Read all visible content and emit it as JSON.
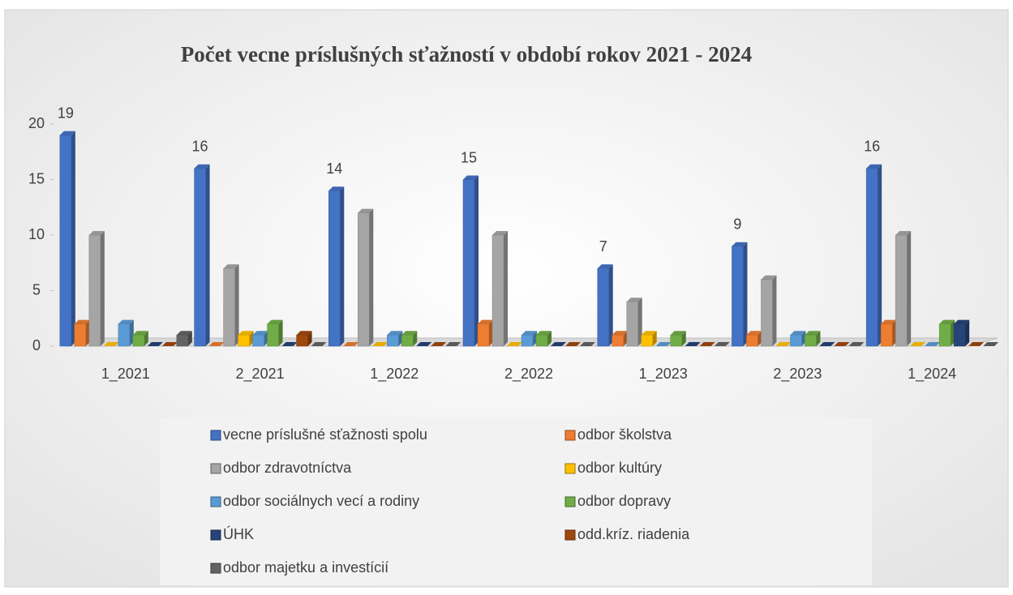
{
  "chart_data": {
    "type": "bar3d",
    "title": "Počet vecne príslušných sťažností v období rokov 2021 - 2024",
    "categories": [
      "1_2021",
      "2_2021",
      "1_2022",
      "2_2022",
      "1_2023",
      "2_2023",
      "1_2024"
    ],
    "series": [
      {
        "name": "vecne príslušné sťažnosti spolu",
        "color": "#4472c4",
        "values": [
          19,
          16,
          14,
          15,
          7,
          9,
          16
        ],
        "data_labels": true
      },
      {
        "name": "odbor školstva",
        "color": "#ed7d31",
        "values": [
          2,
          0,
          0,
          2,
          1,
          1,
          2
        ]
      },
      {
        "name": "odbor zdravotníctva",
        "color": "#a5a5a5",
        "values": [
          10,
          7,
          12,
          10,
          4,
          6,
          10
        ]
      },
      {
        "name": "odbor kultúry",
        "color": "#ffc000",
        "values": [
          0,
          1,
          0,
          0,
          1,
          0,
          0
        ]
      },
      {
        "name": "odbor sociálnych vecí a rodiny",
        "color": "#5b9bd5",
        "values": [
          2,
          1,
          1,
          1,
          0,
          1,
          0
        ]
      },
      {
        "name": "odbor dopravy",
        "color": "#70ad47",
        "values": [
          1,
          2,
          1,
          1,
          1,
          1,
          2
        ]
      },
      {
        "name": "ÚHK",
        "color": "#264478",
        "values": [
          0,
          0,
          0,
          0,
          0,
          0,
          2
        ]
      },
      {
        "name": "odd.kríz. riadenia",
        "color": "#9e480e",
        "values": [
          0,
          1,
          0,
          0,
          0,
          0,
          0
        ]
      },
      {
        "name": "odbor majetku a investícií",
        "color": "#636363",
        "values": [
          1,
          0,
          0,
          0,
          0,
          0,
          0
        ]
      }
    ],
    "ylim": [
      0,
      20
    ],
    "yticks": [
      0,
      5,
      10,
      15,
      20
    ],
    "legend": "bottom"
  }
}
